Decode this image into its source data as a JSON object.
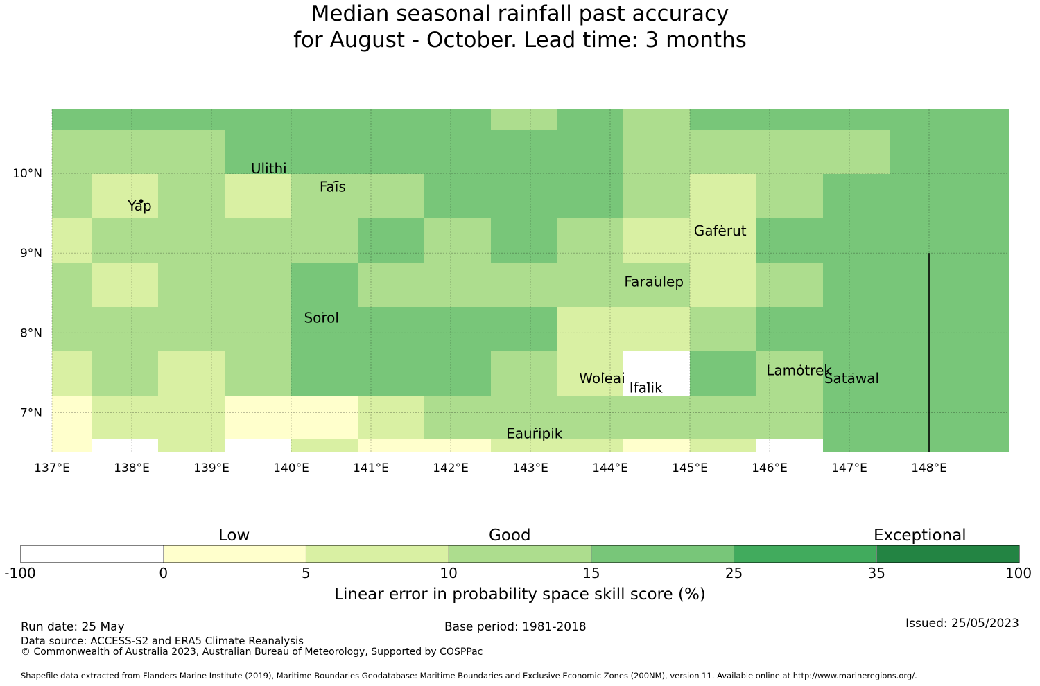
{
  "title": {
    "line1": "Median seasonal rainfall past accuracy",
    "line2": "for August - October. Lead time: 3 months"
  },
  "map": {
    "lon_range": [
      137.0,
      149.0
    ],
    "lat_range": [
      6.5,
      10.8
    ],
    "lon_ticks": [
      137,
      138,
      139,
      140,
      141,
      142,
      143,
      144,
      145,
      146,
      147,
      148
    ],
    "lon_tick_labels": [
      "137°E",
      "138°E",
      "139°E",
      "140°E",
      "141°E",
      "142°E",
      "143°E",
      "144°E",
      "145°E",
      "146°E",
      "147°E",
      "148°E"
    ],
    "lat_ticks": [
      10,
      9,
      8,
      7
    ],
    "lat_tick_labels": [
      "10°N",
      "9°N",
      "8°N",
      "7°N"
    ],
    "grid_lines": true,
    "border_line_lon": 148.0,
    "border_line_lat_range": [
      6.5,
      9.0
    ],
    "cell_columns": 15,
    "cell_rows": 8,
    "cells_category_index": [
      [
        4,
        4,
        4,
        4,
        4,
        4,
        4,
        3,
        4,
        3,
        4,
        4,
        4,
        4,
        4
      ],
      [
        3,
        3,
        3,
        4,
        4,
        4,
        4,
        4,
        4,
        3,
        3,
        3,
        3,
        4,
        4
      ],
      [
        3,
        2,
        3,
        2,
        3,
        3,
        4,
        4,
        4,
        3,
        2,
        3,
        4,
        4,
        4
      ],
      [
        2,
        3,
        3,
        3,
        3,
        4,
        3,
        4,
        3,
        2,
        2,
        4,
        4,
        4,
        4
      ],
      [
        3,
        2,
        3,
        3,
        4,
        3,
        3,
        3,
        3,
        3,
        2,
        3,
        4,
        4,
        4
      ],
      [
        3,
        3,
        3,
        3,
        4,
        4,
        4,
        4,
        2,
        2,
        3,
        4,
        4,
        4,
        4
      ],
      [
        2,
        3,
        2,
        3,
        4,
        4,
        4,
        3,
        2,
        0,
        4,
        3,
        4,
        4,
        4
      ],
      [
        1,
        2,
        2,
        1,
        1,
        2,
        3,
        3,
        3,
        3,
        3,
        3,
        4,
        4,
        4
      ]
    ],
    "bottom_strip_category_index": [
      1,
      0,
      2,
      0,
      2,
      1,
      1,
      2,
      2,
      1,
      2,
      0,
      4,
      4,
      4
    ],
    "places": [
      {
        "name": "Yap",
        "lon": 138.1,
        "lat": 9.53
      },
      {
        "name": "Ulithi",
        "lon": 139.72,
        "lat": 10.0
      },
      {
        "name": "Faīs",
        "lon": 140.52,
        "lat": 9.77
      },
      {
        "name": "Gaferut",
        "lon": 145.38,
        "lat": 9.22
      },
      {
        "name": "Faraulep",
        "lon": 144.55,
        "lat": 8.58
      },
      {
        "name": "Sorol",
        "lon": 140.38,
        "lat": 8.13
      },
      {
        "name": "Woleai",
        "lon": 143.9,
        "lat": 7.37
      },
      {
        "name": "Ifalik",
        "lon": 144.45,
        "lat": 7.25
      },
      {
        "name": "Lamotrek",
        "lon": 146.37,
        "lat": 7.47
      },
      {
        "name": "Satawal",
        "lon": 147.03,
        "lat": 7.37
      },
      {
        "name": "Eauripik",
        "lon": 143.05,
        "lat": 6.68
      }
    ]
  },
  "colorbar": {
    "categories": [
      {
        "label": "Low"
      },
      {
        "label": "Good"
      },
      {
        "label": "Exceptional"
      }
    ],
    "bins": [
      {
        "from": "-100",
        "to": "0",
        "color": "#ffffff"
      },
      {
        "from": "0",
        "to": "5",
        "color": "#ffffcc"
      },
      {
        "from": "5",
        "to": "10",
        "color": "#d9f0a3"
      },
      {
        "from": "10",
        "to": "15",
        "color": "#addd8e"
      },
      {
        "from": "15",
        "to": "25",
        "color": "#78c679"
      },
      {
        "from": "25",
        "to": "35",
        "color": "#41ab5d"
      },
      {
        "from": "35",
        "to": "100",
        "color": "#238443"
      }
    ],
    "tick_labels": [
      "-100",
      "0",
      "5",
      "10",
      "15",
      "25",
      "35",
      "100"
    ],
    "label": "Linear error in probability space skill score (%)"
  },
  "footer": {
    "run_date": "Run date: 25 May",
    "base_period": "Base period: 1981-2018",
    "issued": "Issued: 25/05/2023",
    "data_source": "Data source: ACCESS-S2 and ERA5 Climate Reanalysis",
    "copyright": "© Commonwealth of Australia 2023, Australian Bureau of Meteorology, Supported by COSPPac",
    "shapefile": "Shapefile data extracted from Flanders Marine Institute (2019), Maritime Boundaries Geodatabase: Maritime Boundaries and Exclusive Economic Zones (200NM), version 11. Available online at http://www.marineregions.org/."
  }
}
